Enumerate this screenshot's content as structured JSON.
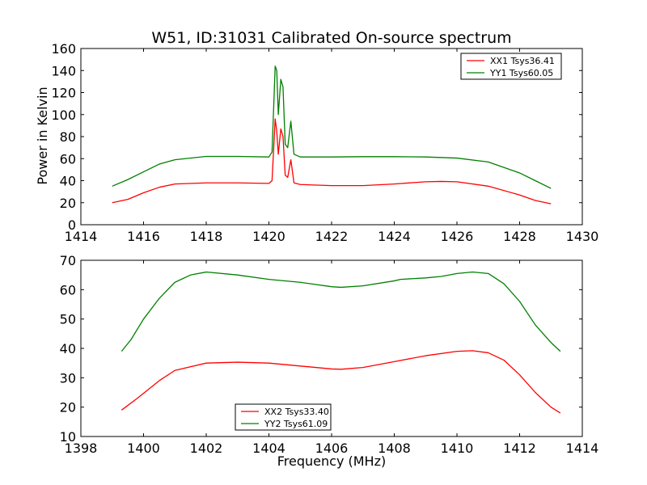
{
  "figure": {
    "title": "W51, ID:31031 Calibrated On-source spectrum",
    "xlabel": "Frequency (MHz)",
    "ylabel": "Power in Kelvin"
  },
  "chart_data": [
    {
      "type": "line",
      "title": "W51, ID:31031 Calibrated On-source spectrum",
      "xlabel": "",
      "ylabel": "Power in Kelvin",
      "xlim": [
        1414,
        1430
      ],
      "ylim": [
        0,
        160
      ],
      "xticks": [
        1414,
        1416,
        1418,
        1420,
        1422,
        1424,
        1426,
        1428,
        1430
      ],
      "yticks": [
        0,
        20,
        40,
        60,
        80,
        100,
        120,
        140,
        160
      ],
      "grid": false,
      "legend": "top-right",
      "series": [
        {
          "name": "XX1 Tsys36.41",
          "color": "#ff0000",
          "points": [
            [
              1415.0,
              20
            ],
            [
              1415.5,
              23
            ],
            [
              1416.0,
              29
            ],
            [
              1416.5,
              34
            ],
            [
              1417.0,
              37
            ],
            [
              1418.0,
              38
            ],
            [
              1419.0,
              38
            ],
            [
              1420.0,
              37.5
            ],
            [
              1420.1,
              40
            ],
            [
              1420.2,
              96
            ],
            [
              1420.25,
              85
            ],
            [
              1420.3,
              64
            ],
            [
              1420.38,
              87
            ],
            [
              1420.45,
              80
            ],
            [
              1420.52,
              45
            ],
            [
              1420.6,
              43
            ],
            [
              1420.7,
              59
            ],
            [
              1420.8,
              38
            ],
            [
              1421.0,
              36.5
            ],
            [
              1422.0,
              35.5
            ],
            [
              1423.0,
              35.5
            ],
            [
              1424.0,
              37
            ],
            [
              1425.0,
              39
            ],
            [
              1425.5,
              39.3
            ],
            [
              1426.0,
              39
            ],
            [
              1427.0,
              35
            ],
            [
              1428.0,
              27
            ],
            [
              1428.5,
              22
            ],
            [
              1429.0,
              19
            ]
          ]
        },
        {
          "name": "YY1 Tsys60.05",
          "color": "#008000",
          "points": [
            [
              1415.0,
              35
            ],
            [
              1415.5,
              41
            ],
            [
              1416.0,
              48
            ],
            [
              1416.5,
              55
            ],
            [
              1417.0,
              59
            ],
            [
              1418.0,
              62
            ],
            [
              1419.0,
              62
            ],
            [
              1420.0,
              61.5
            ],
            [
              1420.1,
              66
            ],
            [
              1420.2,
              144
            ],
            [
              1420.25,
              140
            ],
            [
              1420.3,
              100
            ],
            [
              1420.38,
              132
            ],
            [
              1420.45,
              125
            ],
            [
              1420.52,
              73
            ],
            [
              1420.6,
              70
            ],
            [
              1420.7,
              94
            ],
            [
              1420.8,
              64
            ],
            [
              1421.0,
              61.5
            ],
            [
              1422.0,
              61.5
            ],
            [
              1423.0,
              61.8
            ],
            [
              1424.0,
              61.8
            ],
            [
              1425.0,
              61.5
            ],
            [
              1426.0,
              60.5
            ],
            [
              1427.0,
              57
            ],
            [
              1428.0,
              47
            ],
            [
              1428.5,
              40
            ],
            [
              1429.0,
              33
            ]
          ]
        }
      ]
    },
    {
      "type": "line",
      "title": "",
      "xlabel": "Frequency (MHz)",
      "ylabel": "",
      "xlim": [
        1398,
        1414
      ],
      "ylim": [
        10,
        70
      ],
      "xticks": [
        1398,
        1400,
        1402,
        1404,
        1406,
        1408,
        1410,
        1412,
        1414
      ],
      "yticks": [
        10,
        20,
        30,
        40,
        50,
        60,
        70
      ],
      "grid": false,
      "legend": "bottom-center",
      "series": [
        {
          "name": "XX2 Tsys33.40",
          "color": "#ff0000",
          "points": [
            [
              1399.3,
              19
            ],
            [
              1399.8,
              23
            ],
            [
              1400.5,
              29
            ],
            [
              1401.0,
              32.5
            ],
            [
              1402.0,
              35
            ],
            [
              1403.0,
              35.3
            ],
            [
              1404.0,
              35
            ],
            [
              1405.0,
              34
            ],
            [
              1406.0,
              33
            ],
            [
              1406.3,
              32.9
            ],
            [
              1407.0,
              33.5
            ],
            [
              1408.0,
              35.5
            ],
            [
              1409.0,
              37.5
            ],
            [
              1410.0,
              39
            ],
            [
              1410.5,
              39.2
            ],
            [
              1411.0,
              38.5
            ],
            [
              1411.5,
              36
            ],
            [
              1412.0,
              31
            ],
            [
              1412.5,
              25
            ],
            [
              1413.0,
              20
            ],
            [
              1413.3,
              18
            ]
          ]
        },
        {
          "name": "YY2 Tsys61.09",
          "color": "#008000",
          "points": [
            [
              1399.3,
              39
            ],
            [
              1399.6,
              43
            ],
            [
              1400.0,
              50
            ],
            [
              1400.5,
              57
            ],
            [
              1401.0,
              62.5
            ],
            [
              1401.5,
              65
            ],
            [
              1402.0,
              66
            ],
            [
              1403.0,
              65
            ],
            [
              1404.0,
              63.5
            ],
            [
              1405.0,
              62.5
            ],
            [
              1406.0,
              61
            ],
            [
              1406.3,
              60.8
            ],
            [
              1407.0,
              61.3
            ],
            [
              1408.0,
              63
            ],
            [
              1408.2,
              63.5
            ],
            [
              1409.0,
              64
            ],
            [
              1409.5,
              64.5
            ],
            [
              1410.0,
              65.5
            ],
            [
              1410.5,
              66
            ],
            [
              1411.0,
              65.5
            ],
            [
              1411.5,
              62
            ],
            [
              1412.0,
              56
            ],
            [
              1412.5,
              48
            ],
            [
              1413.0,
              42
            ],
            [
              1413.3,
              39
            ]
          ]
        }
      ]
    }
  ]
}
